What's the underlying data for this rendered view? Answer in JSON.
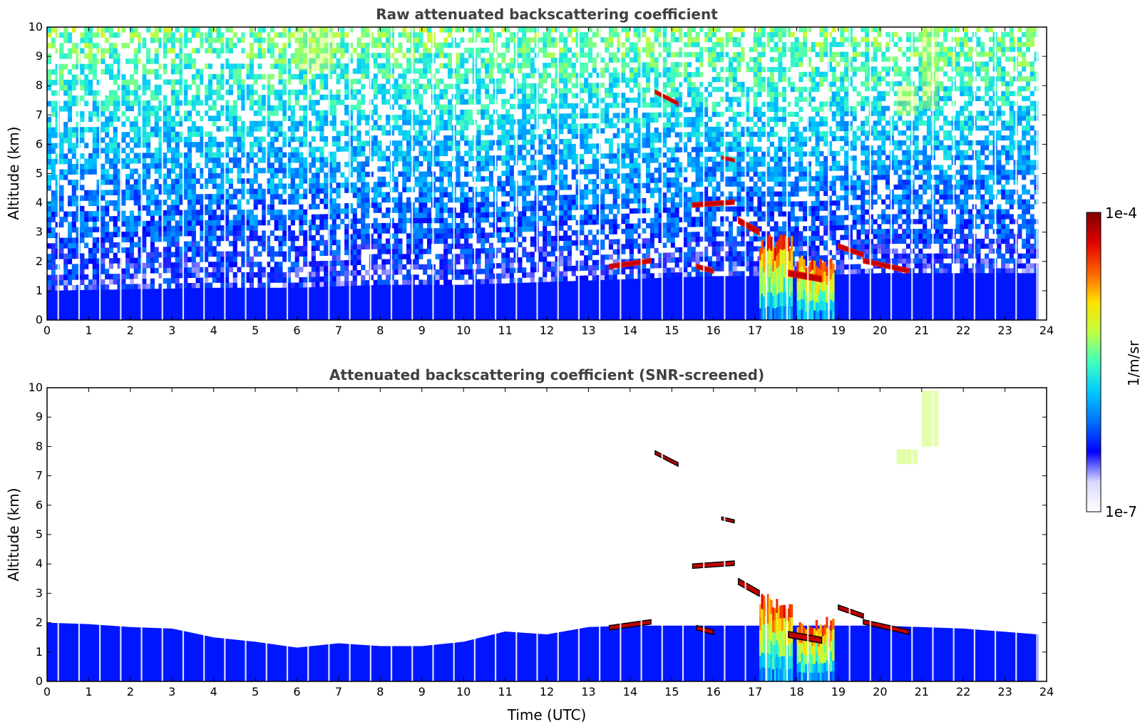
{
  "colors": {
    "colormap": [
      "#ffffff",
      "#d8d8ff",
      "#0000ff",
      "#0070ff",
      "#00c8ff",
      "#40ffc0",
      "#c0ff40",
      "#ffe000",
      "#ff6000",
      "#e00000",
      "#800000"
    ],
    "cloud_edge": "#000000",
    "axis": "#000000",
    "title": "#404040"
  },
  "colorbar": {
    "max_label": "1e-4",
    "min_label": "1e-7",
    "unit_label": "1/m/sr",
    "scale": "log",
    "range": [
      1e-07,
      0.0001
    ]
  },
  "chart_data": [
    {
      "type": "heatmap",
      "title": "Raw attenuated backscattering coefficient",
      "xlabel": "",
      "ylabel": "Altitude (km)",
      "xlim": [
        0,
        24
      ],
      "ylim": [
        0,
        10
      ],
      "xticks": [
        "0",
        "1",
        "2",
        "3",
        "4",
        "5",
        "6",
        "7",
        "8",
        "9",
        "10",
        "11",
        "12",
        "13",
        "14",
        "15",
        "16",
        "17",
        "18",
        "19",
        "20",
        "21",
        "22",
        "23",
        "24"
      ],
      "yticks": [
        "0",
        "1",
        "2",
        "3",
        "4",
        "5",
        "6",
        "7",
        "8",
        "9",
        "10"
      ],
      "data_end_time": 23.8,
      "noise_background": true,
      "boundary_layer_top_km": [
        [
          0,
          1.0
        ],
        [
          2,
          1.05
        ],
        [
          4,
          1.1
        ],
        [
          6,
          1.1
        ],
        [
          8,
          1.2
        ],
        [
          10,
          1.2
        ],
        [
          12,
          1.3
        ],
        [
          14,
          1.4
        ],
        [
          16,
          1.5
        ],
        [
          18,
          1.5
        ],
        [
          20,
          1.6
        ],
        [
          22,
          1.6
        ],
        [
          23.8,
          1.6
        ]
      ],
      "cloud_layers": [
        {
          "t": [
            14.6,
            15.15
          ],
          "h": [
            7.85,
            7.45
          ],
          "thickness_km": 0.12
        },
        {
          "t": [
            16.2,
            16.5
          ],
          "h": [
            5.6,
            5.5
          ],
          "thickness_km": 0.1
        },
        {
          "t": [
            15.5,
            16.5
          ],
          "h": [
            4.0,
            4.1
          ],
          "thickness_km": 0.15
        },
        {
          "t": [
            13.5,
            14.5
          ],
          "h": [
            1.9,
            2.1
          ],
          "thickness_km": 0.15
        },
        {
          "t": [
            15.6,
            16.0
          ],
          "h": [
            1.9,
            1.75
          ],
          "thickness_km": 0.15
        },
        {
          "t": [
            16.6,
            17.1
          ],
          "h": [
            3.5,
            3.1
          ],
          "thickness_km": 0.2
        },
        {
          "t": [
            17.8,
            18.6
          ],
          "h": [
            1.7,
            1.5
          ],
          "thickness_km": 0.2
        },
        {
          "t": [
            19.0,
            19.6
          ],
          "h": [
            2.6,
            2.3
          ],
          "thickness_km": 0.15
        },
        {
          "t": [
            19.6,
            20.7
          ],
          "h": [
            2.1,
            1.75
          ],
          "thickness_km": 0.15
        }
      ],
      "precipitation_shafts": [
        {
          "t": [
            17.1,
            17.9
          ],
          "top_km": 3.0
        },
        {
          "t": [
            18.0,
            18.9
          ],
          "top_km": 2.2
        }
      ],
      "cirrus_patches": [
        {
          "t": [
            21.0,
            21.4
          ],
          "h": [
            7.2,
            10.0
          ]
        },
        {
          "t": [
            20.4,
            20.9
          ],
          "h": [
            7.0,
            8.0
          ]
        },
        {
          "t": [
            6.0,
            6.9
          ],
          "h": [
            8.5,
            10.0
          ]
        }
      ]
    },
    {
      "type": "heatmap",
      "title": "Attenuated backscattering coefficient (SNR-screened)",
      "xlabel": "Time (UTC)",
      "ylabel": "Altitude (km)",
      "xlim": [
        0,
        24
      ],
      "ylim": [
        0,
        10
      ],
      "xticks": [
        "0",
        "1",
        "2",
        "3",
        "4",
        "5",
        "6",
        "7",
        "8",
        "9",
        "10",
        "11",
        "12",
        "13",
        "14",
        "15",
        "16",
        "17",
        "18",
        "19",
        "20",
        "21",
        "22",
        "23",
        "24"
      ],
      "yticks": [
        "0",
        "1",
        "2",
        "3",
        "4",
        "5",
        "6",
        "7",
        "8",
        "9",
        "10"
      ],
      "data_end_time": 23.8,
      "noise_background": false,
      "boundary_layer_top_km": [
        [
          0,
          2.0
        ],
        [
          1,
          1.95
        ],
        [
          2,
          1.85
        ],
        [
          3,
          1.8
        ],
        [
          4,
          1.5
        ],
        [
          5,
          1.35
        ],
        [
          6,
          1.15
        ],
        [
          7,
          1.3
        ],
        [
          8,
          1.2
        ],
        [
          9,
          1.2
        ],
        [
          10,
          1.35
        ],
        [
          11,
          1.7
        ],
        [
          12,
          1.6
        ],
        [
          13,
          1.85
        ],
        [
          14,
          1.9
        ],
        [
          16,
          1.9
        ],
        [
          17,
          1.9
        ],
        [
          20,
          1.9
        ],
        [
          22,
          1.8
        ],
        [
          23.8,
          1.6
        ]
      ],
      "cloud_layers": [
        {
          "t": [
            14.6,
            15.15
          ],
          "h": [
            7.85,
            7.45
          ],
          "thickness_km": 0.12
        },
        {
          "t": [
            16.2,
            16.5
          ],
          "h": [
            5.6,
            5.5
          ],
          "thickness_km": 0.1
        },
        {
          "t": [
            15.5,
            16.5
          ],
          "h": [
            4.0,
            4.1
          ],
          "thickness_km": 0.15
        },
        {
          "t": [
            13.5,
            14.5
          ],
          "h": [
            1.9,
            2.1
          ],
          "thickness_km": 0.15
        },
        {
          "t": [
            15.6,
            16.0
          ],
          "h": [
            1.9,
            1.75
          ],
          "thickness_km": 0.15
        },
        {
          "t": [
            16.6,
            17.1
          ],
          "h": [
            3.5,
            3.1
          ],
          "thickness_km": 0.2
        },
        {
          "t": [
            17.8,
            18.6
          ],
          "h": [
            1.7,
            1.5
          ],
          "thickness_km": 0.2
        },
        {
          "t": [
            19.0,
            19.6
          ],
          "h": [
            2.6,
            2.3
          ],
          "thickness_km": 0.15
        },
        {
          "t": [
            19.6,
            20.7
          ],
          "h": [
            2.1,
            1.75
          ],
          "thickness_km": 0.15
        }
      ],
      "precipitation_shafts": [
        {
          "t": [
            17.1,
            17.9
          ],
          "top_km": 3.0
        },
        {
          "t": [
            18.0,
            18.9
          ],
          "top_km": 2.2
        }
      ],
      "cirrus_patches": [
        {
          "t": [
            21.0,
            21.4
          ],
          "h": [
            8.0,
            9.9
          ]
        },
        {
          "t": [
            20.4,
            20.9
          ],
          "h": [
            7.4,
            7.9
          ]
        }
      ]
    }
  ]
}
